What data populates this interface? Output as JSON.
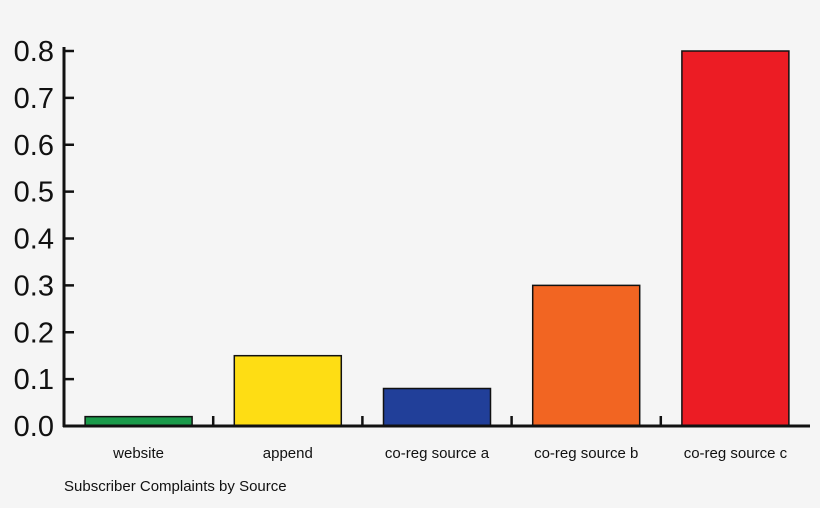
{
  "chart_data": {
    "type": "bar",
    "title": "",
    "xlabel": "Subscriber Complaints by Source",
    "ylabel": "",
    "ylim": [
      0,
      0.8
    ],
    "yticks": [
      "0.0",
      "0.1",
      "0.2",
      "0.3",
      "0.4",
      "0.5",
      "0.6",
      "0.7",
      "0.8"
    ],
    "grid": false,
    "categories": [
      "website",
      "append",
      "co-reg source a",
      "co-reg source b",
      "co-reg source c"
    ],
    "values": [
      0.02,
      0.15,
      0.08,
      0.3,
      0.8
    ],
    "colors": [
      "#1a9a4a",
      "#fedd14",
      "#213f99",
      "#f26522",
      "#ec1c24"
    ]
  }
}
